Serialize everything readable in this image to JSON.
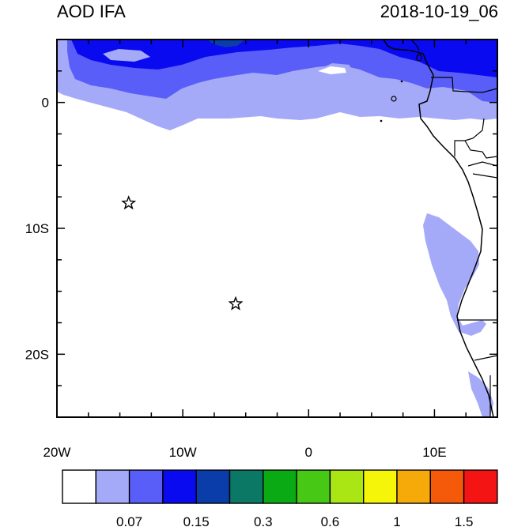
{
  "title": "AOD IFA",
  "timestamp": "2018-10-19_06",
  "map": {
    "lon_range": [
      -20,
      15
    ],
    "lat_range": [
      -25,
      5
    ],
    "lon_ticks": [
      {
        "lon": -20,
        "label": "20W"
      },
      {
        "lon": -10,
        "label": "10W"
      },
      {
        "lon": 0,
        "label": "0"
      },
      {
        "lon": 10,
        "label": "10E"
      }
    ],
    "lat_ticks": [
      {
        "lat": 0,
        "label": "0"
      },
      {
        "lat": -10,
        "label": "10S"
      },
      {
        "lat": -20,
        "label": "20S"
      }
    ],
    "markers": [
      {
        "type": "star",
        "lon": -14.3,
        "lat": -8.0
      },
      {
        "type": "star",
        "lon": -5.8,
        "lat": -16.0
      }
    ]
  },
  "colorbar": {
    "colors": [
      "#ffffff",
      "#a5aaf8",
      "#5a5ef8",
      "#0a0af0",
      "#0a3caa",
      "#0a7864",
      "#0aaa14",
      "#46c814",
      "#aae614",
      "#f5f50a",
      "#f5aa0a",
      "#f55a0a",
      "#f51414"
    ],
    "labels": [
      {
        "after_box": 2,
        "text": "0.07"
      },
      {
        "after_box": 4,
        "text": "0.15"
      },
      {
        "after_box": 6,
        "text": "0.3"
      },
      {
        "after_box": 8,
        "text": "0.6"
      },
      {
        "after_box": 10,
        "text": "1"
      },
      {
        "after_box": 12,
        "text": "1.5"
      }
    ]
  },
  "level_colors": {
    "light": "#a5aaf8",
    "medium": "#5a5ef8",
    "dark": "#0a0af0",
    "darkest": "#0a3caa"
  }
}
